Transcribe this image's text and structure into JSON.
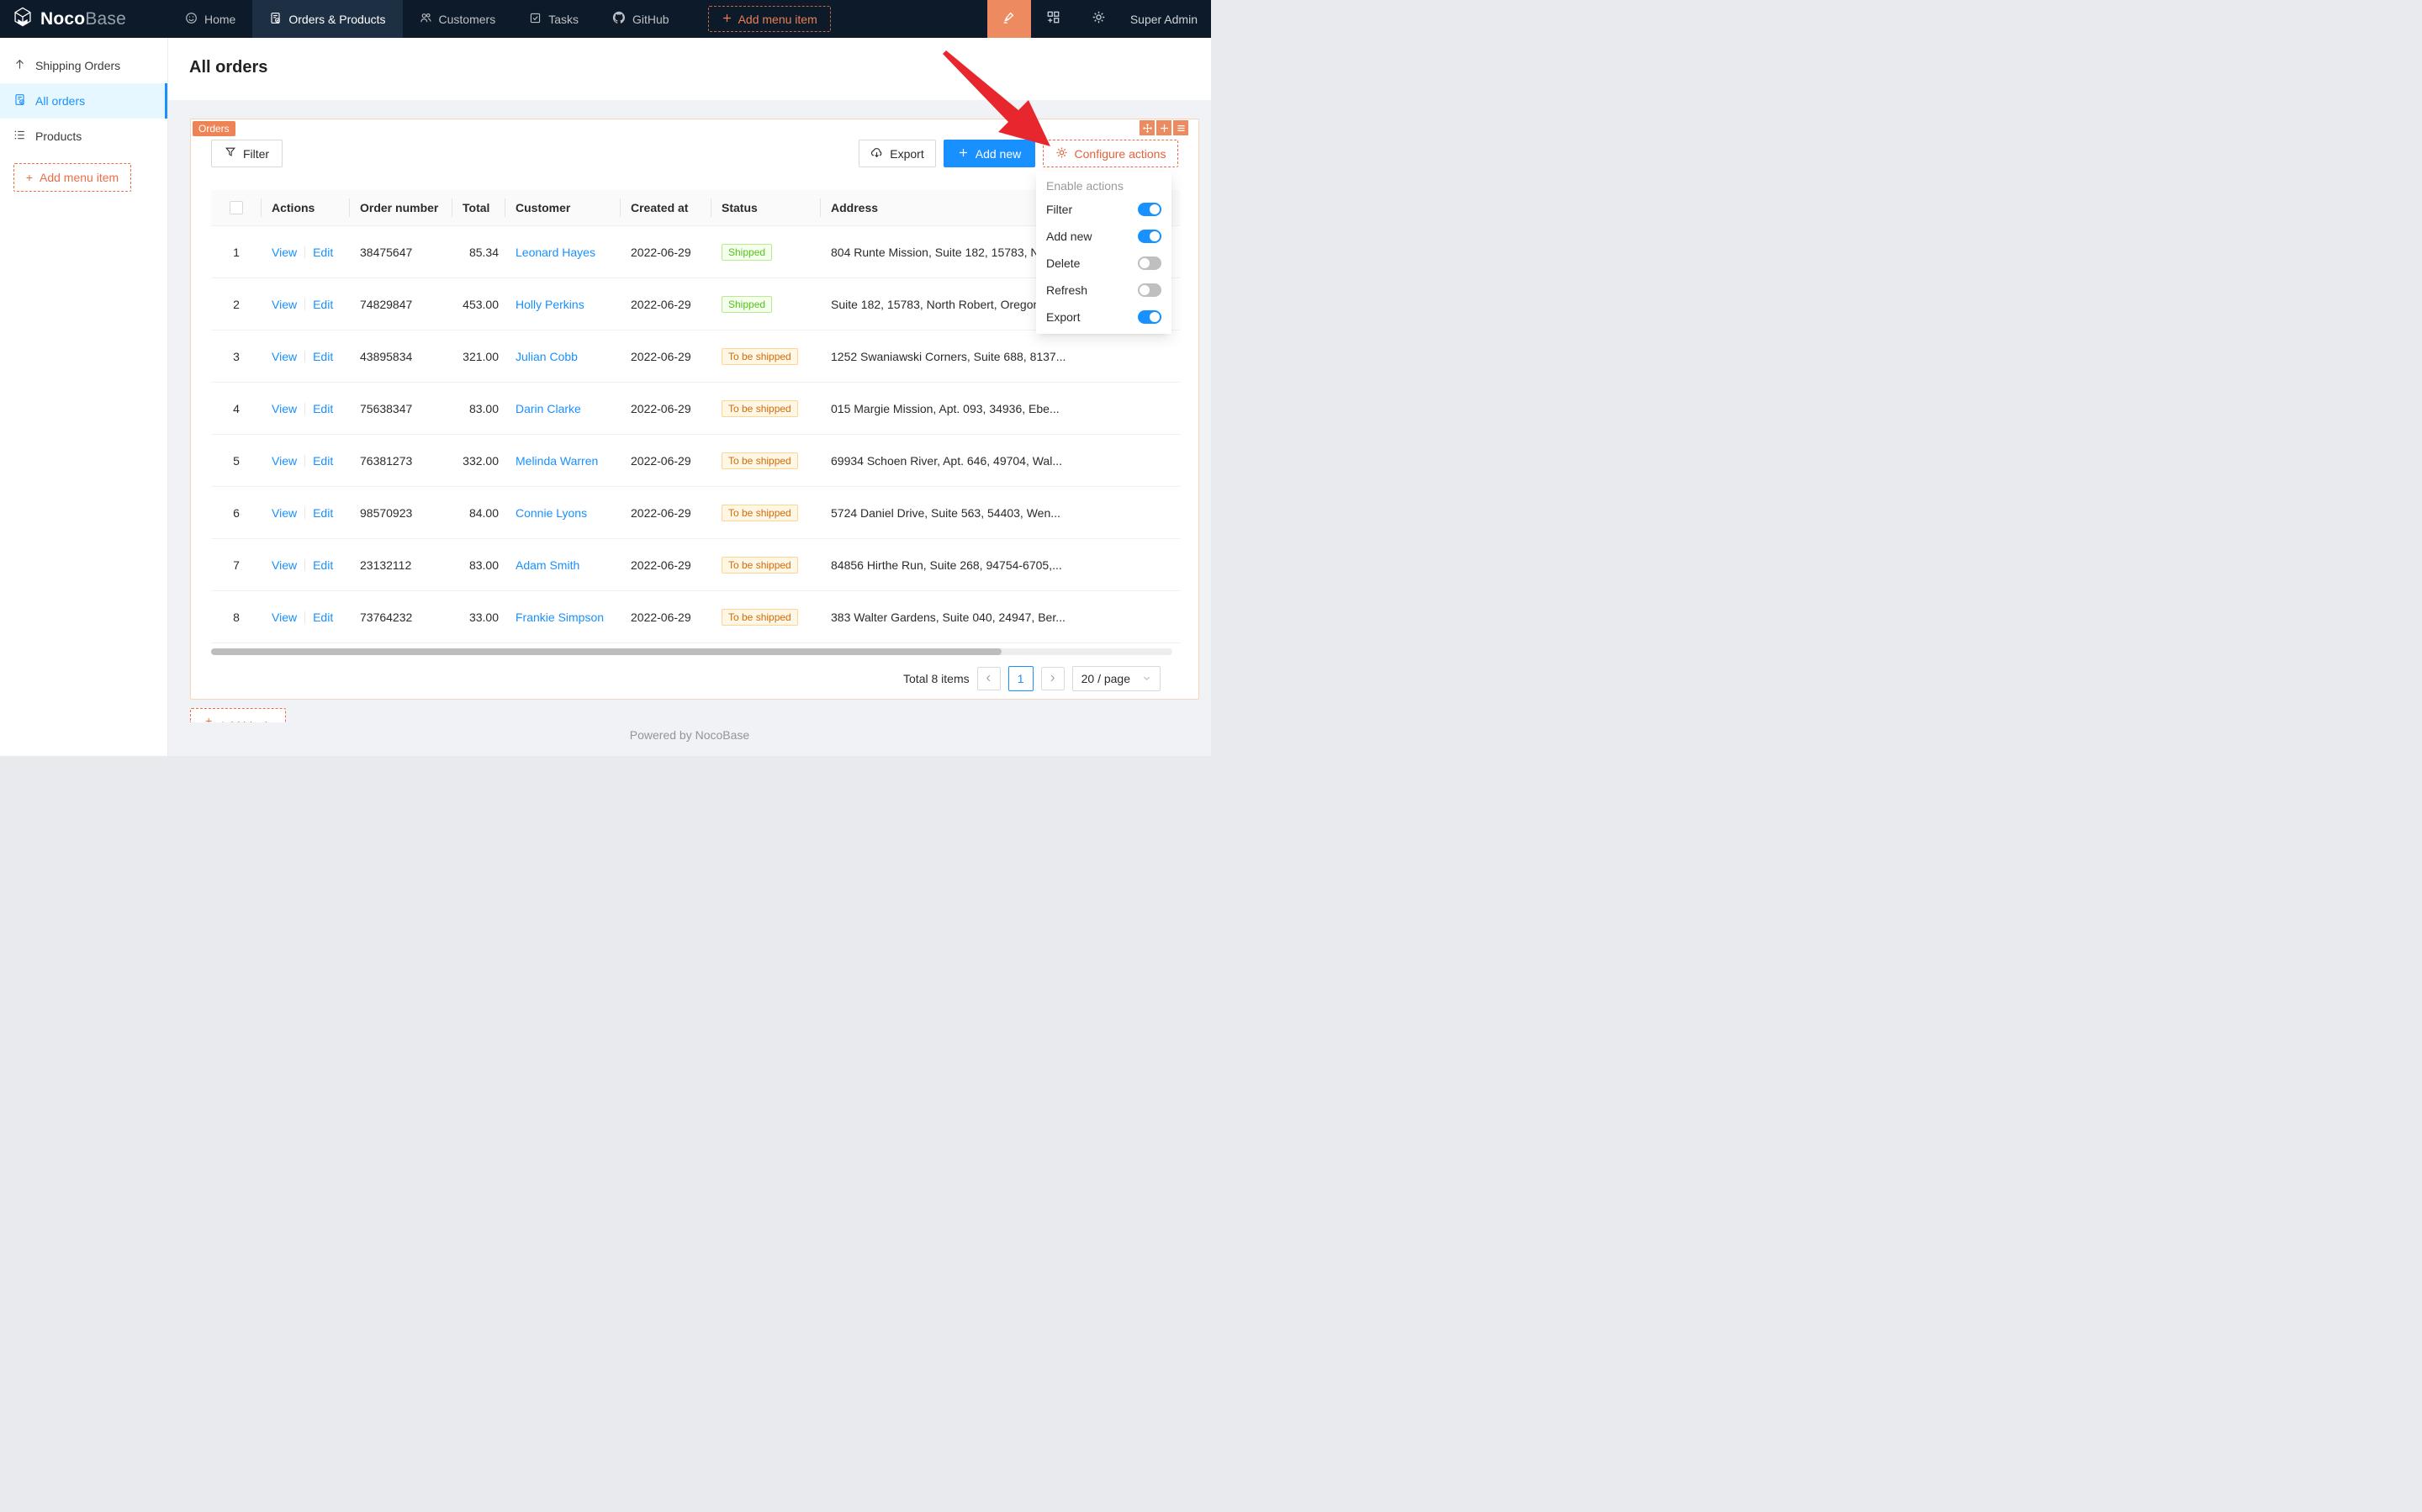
{
  "navbar": {
    "brand_bold": "Noco",
    "brand_light": "Base",
    "items": [
      {
        "label": "Home",
        "icon": "smile-icon",
        "active": false
      },
      {
        "label": "Orders & Products",
        "icon": "order-icon",
        "active": true
      },
      {
        "label": "Customers",
        "icon": "team-icon",
        "active": false
      },
      {
        "label": "Tasks",
        "icon": "check-square-icon",
        "active": false
      },
      {
        "label": "GitHub",
        "icon": "github-icon",
        "active": false
      }
    ],
    "add_menu_item": "Add menu item",
    "user": "Super Admin"
  },
  "sidebar": {
    "items": [
      {
        "label": "Shipping Orders",
        "icon": "arrow-up-icon",
        "active": false
      },
      {
        "label": "All orders",
        "icon": "file-done-icon",
        "active": true
      },
      {
        "label": "Products",
        "icon": "list-icon",
        "active": false
      }
    ],
    "add_menu_item": "Add menu item"
  },
  "page": {
    "title": "All orders"
  },
  "block": {
    "tag": "Orders",
    "toolbar": {
      "filter": "Filter",
      "export": "Export",
      "add_new": "Add new",
      "configure_actions": "Configure actions"
    },
    "table": {
      "columns": [
        "",
        "Actions",
        "Order number",
        "Total",
        "Customer",
        "Created at",
        "Status",
        "Address"
      ],
      "action_labels": [
        "View",
        "Edit"
      ],
      "rows": [
        {
          "n": "1",
          "order_number": "38475647",
          "total": "85.34",
          "customer": "Leonard Hayes",
          "created_at": "2022-06-29",
          "status": "Shipped",
          "status_type": "success",
          "address": "804 Runte Mission, Suite 182, 15783, N"
        },
        {
          "n": "2",
          "order_number": "74829847",
          "total": "453.00",
          "customer": "Holly Perkins",
          "created_at": "2022-06-29",
          "status": "Shipped",
          "status_type": "success",
          "address": "Suite 182, 15783, North Robert, Oregon"
        },
        {
          "n": "3",
          "order_number": "43895834",
          "total": "321.00",
          "customer": "Julian Cobb",
          "created_at": "2022-06-29",
          "status": "To be shipped",
          "status_type": "warning",
          "address": "1252 Swaniawski Corners, Suite 688, 8137..."
        },
        {
          "n": "4",
          "order_number": "75638347",
          "total": "83.00",
          "customer": "Darin Clarke",
          "created_at": "2022-06-29",
          "status": "To be shipped",
          "status_type": "warning",
          "address": "015 Margie Mission, Apt. 093, 34936, Ebe..."
        },
        {
          "n": "5",
          "order_number": "76381273",
          "total": "332.00",
          "customer": "Melinda Warren",
          "created_at": "2022-06-29",
          "status": "To be shipped",
          "status_type": "warning",
          "address": "69934 Schoen River, Apt. 646, 49704, Wal..."
        },
        {
          "n": "6",
          "order_number": "98570923",
          "total": "84.00",
          "customer": "Connie Lyons",
          "created_at": "2022-06-29",
          "status": "To be shipped",
          "status_type": "warning",
          "address": "5724 Daniel Drive, Suite 563, 54403, Wen..."
        },
        {
          "n": "7",
          "order_number": "23132112",
          "total": "83.00",
          "customer": "Adam Smith",
          "created_at": "2022-06-29",
          "status": "To be shipped",
          "status_type": "warning",
          "address": "84856 Hirthe Run, Suite 268, 94754-6705,..."
        },
        {
          "n": "8",
          "order_number": "73764232",
          "total": "33.00",
          "customer": "Frankie Simpson",
          "created_at": "2022-06-29",
          "status": "To be shipped",
          "status_type": "warning",
          "address": "383 Walter Gardens, Suite 040, 24947, Ber..."
        }
      ]
    },
    "pagination": {
      "total_label": "Total 8 items",
      "current_page": "1",
      "page_size_label": "20 / page"
    }
  },
  "dropdown": {
    "title": "Enable actions",
    "items": [
      {
        "label": "Filter",
        "enabled": true
      },
      {
        "label": "Add new",
        "enabled": true
      },
      {
        "label": "Delete",
        "enabled": false
      },
      {
        "label": "Refresh",
        "enabled": false
      },
      {
        "label": "Export",
        "enabled": true
      }
    ]
  },
  "add_block_label": "Add block",
  "footer": "Powered by NocoBase",
  "colors": {
    "navbar_bg": "#0c1a29",
    "accent_orange": "#ee8a5f",
    "accent_orange_text": "#ed6d46",
    "block_border": "#f7d3ba",
    "primary_blue": "#1890ff",
    "success_text": "#52c41a",
    "success_bg": "#f6ffed",
    "success_border": "#b7eb8f",
    "warning_text": "#d46b08",
    "warning_bg": "#fff7e6",
    "warning_border": "#ffd591",
    "annotation_arrow_red": "#e8262d"
  }
}
